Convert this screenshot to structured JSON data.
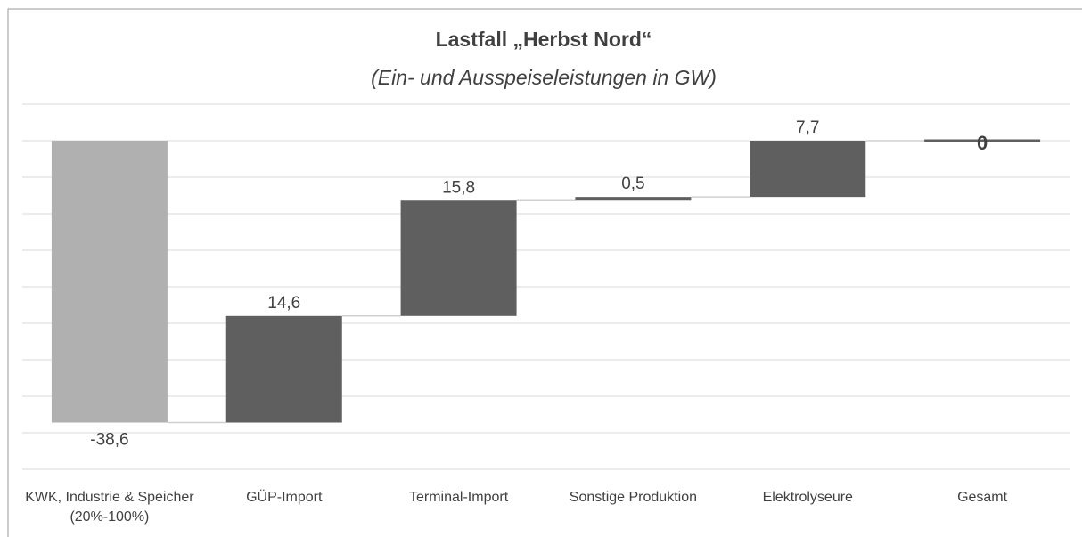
{
  "chart_data": {
    "type": "waterfall",
    "title": "Lastfall „Herbst Nord“",
    "subtitle": "(Ein- und Ausspeiseleistungen in GW)",
    "categories": [
      "KWK, Industrie & Speicher (20%-100%)",
      "GÜP-Import",
      "Terminal-Import",
      "Sonstige Produktion",
      "Elektrolyseure",
      "Gesamt"
    ],
    "values": [
      -38.6,
      14.6,
      15.8,
      0.5,
      7.7,
      0
    ],
    "value_labels": [
      "-38,6",
      "14,6",
      "15,8",
      "0,5",
      "7,7",
      "0"
    ],
    "total": [
      false,
      false,
      false,
      false,
      false,
      true
    ],
    "colors": [
      "#b0b0b0",
      "#5f5f5f",
      "#5f5f5f",
      "#5f5f5f",
      "#5f5f5f",
      "#5f5f5f"
    ],
    "ylim": [
      -45,
      5
    ],
    "yticks": [
      -45,
      -40,
      -35,
      -30,
      -25,
      -20,
      -15,
      -10,
      -5,
      0,
      5
    ],
    "grid": true
  }
}
